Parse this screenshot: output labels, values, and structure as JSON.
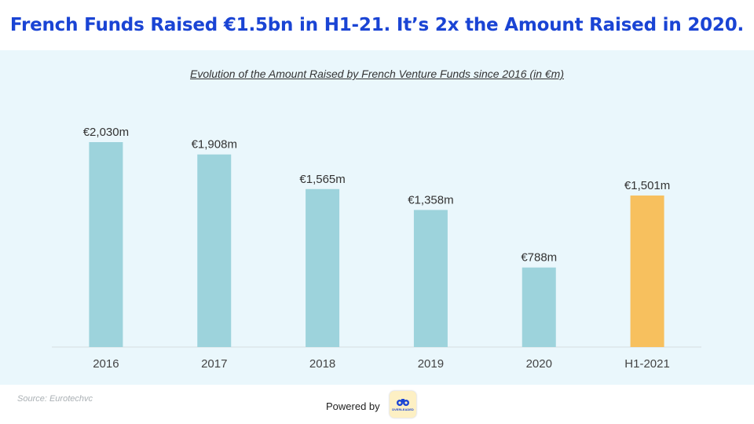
{
  "header": {
    "title": "French Funds Raised €1.5bn in H1-21. It’s 2x the Amount Raised in 2020."
  },
  "chart_data": {
    "type": "bar",
    "title": "Evolution of the Amount Raised by French Venture Funds since 2016 (in €m)",
    "categories": [
      "2016",
      "2017",
      "2018",
      "2019",
      "2020",
      "H1-2021"
    ],
    "values": [
      2030,
      1908,
      1565,
      1358,
      788,
      1501
    ],
    "value_labels": [
      "€2,030m",
      "€1,908m",
      "€1,565m",
      "€1,358m",
      "€788m",
      "€1,501m"
    ],
    "colors": [
      "#9dd3dc",
      "#9dd3dc",
      "#9dd3dc",
      "#9dd3dc",
      "#9dd3dc",
      "#f7c05e"
    ],
    "ylim": [
      0,
      2030
    ],
    "grid": false,
    "legend": "none"
  },
  "footer": {
    "source": "Source: Eurotechvc",
    "powered_by": "Powered by",
    "logo_text": "DVERLEADED"
  }
}
